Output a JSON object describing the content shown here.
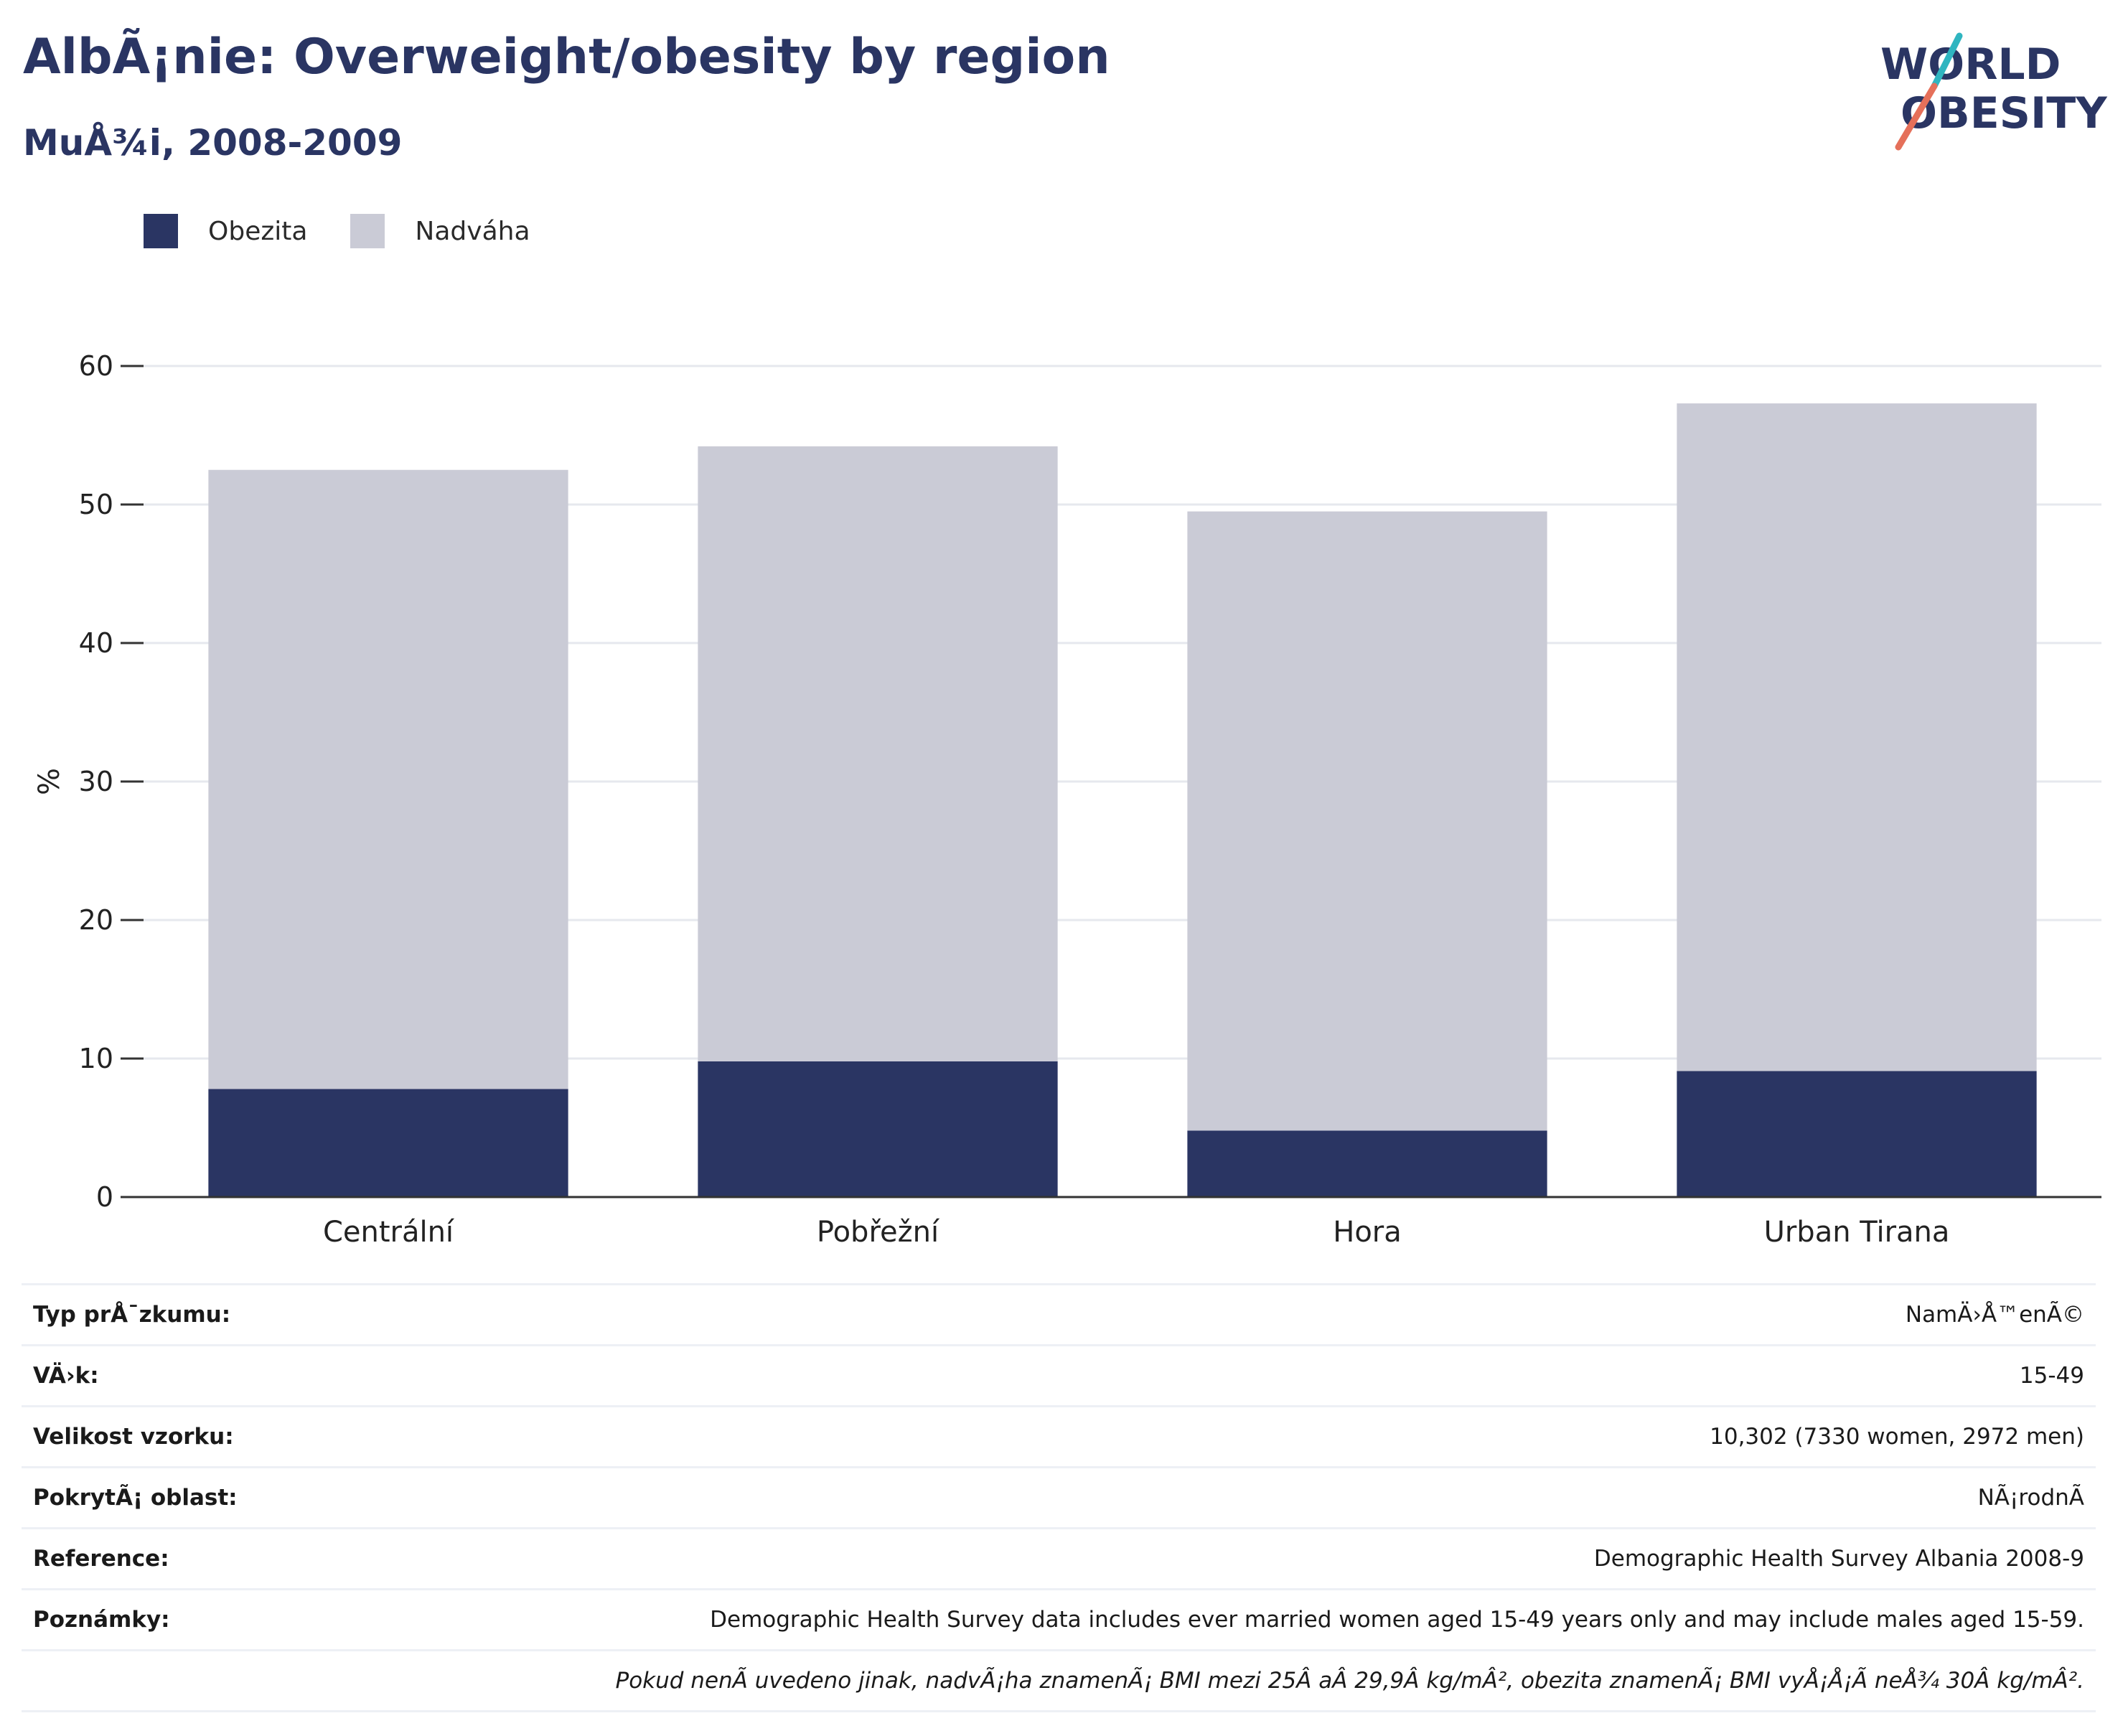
{
  "title": "AlbÃ¡nie: Overweight/obesity by region",
  "subtitle": "MuÅ¾i, 2008-2009",
  "logo": {
    "line1": "WORLD",
    "line2": "OBESITY"
  },
  "colors": {
    "obesity": "#2a3563",
    "overweight": "#cacbd6",
    "title": "#2a3563",
    "grid": "#e6e8ee",
    "axis": "#333333"
  },
  "chart_data": {
    "type": "bar",
    "stacked": true,
    "categories": [
      "Centrální",
      "Pobřežní",
      "Hora",
      "Urban Tirana"
    ],
    "series": [
      {
        "name": "Obezita",
        "values": [
          7.8,
          9.8,
          4.8,
          9.1
        ]
      },
      {
        "name": "Nadváha",
        "values": [
          44.7,
          44.4,
          44.7,
          48.2
        ]
      }
    ],
    "ylabel": "%",
    "ylim": [
      0,
      60
    ],
    "yticks": [
      0,
      10,
      20,
      30,
      40,
      50,
      60
    ],
    "grid": true,
    "legend_position": "top-left"
  },
  "meta": [
    {
      "key": "Typ prÅ¯zkumu:",
      "value": "NamÄ›Å™enÃ©"
    },
    {
      "key": "VÄ›k:",
      "value": "15-49"
    },
    {
      "key": "Velikost vzorku:",
      "value": "10,302 (7330 women, 2972 men)"
    },
    {
      "key": "PokrytÃ¡ oblast:",
      "value": "NÃ¡rodnÃ"
    },
    {
      "key": "Reference:",
      "value": "Demographic Health Survey Albania 2008-9"
    },
    {
      "key": "Poznámky:",
      "value": "Demographic Health Survey data includes ever married women aged 15-49 years only and may include males aged 15-59."
    }
  ],
  "footnote": "Pokud nenÃ uvedeno jinak, nadvÃ¡ha znamenÃ¡ BMI mezi 25Â aÂ 29,9Â kg/mÂ², obezita znamenÃ¡ BMI vyÅ¡Å¡Ã neÅ¾ 30Â kg/mÂ²."
}
